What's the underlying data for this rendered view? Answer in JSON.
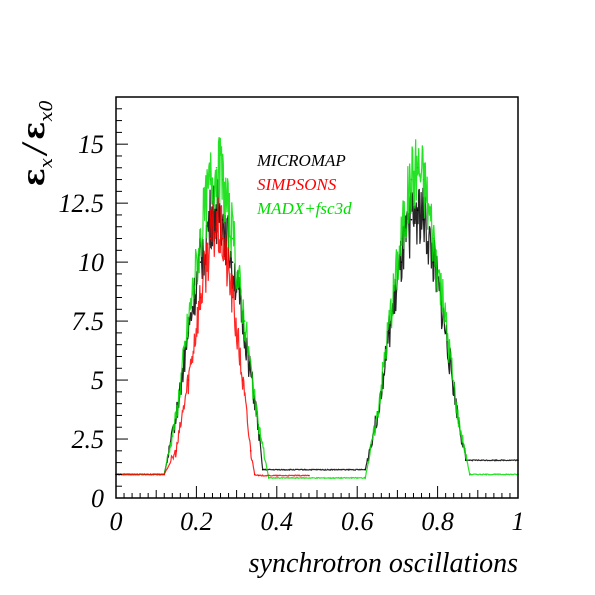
{
  "chart_data": {
    "type": "line",
    "title": "",
    "xlabel": "synchrotron oscillations",
    "ylabel": {
      "numerator": "ε",
      "numerator_sub": "x",
      "separator": "/",
      "denominator": "ε",
      "denominator_sub": "x0"
    },
    "xlim": [
      0,
      1
    ],
    "ylim": [
      0,
      17
    ],
    "x_ticks": [
      "0",
      "0.2",
      "0.4",
      "0.6",
      "0.8",
      "1"
    ],
    "x_tick_values": [
      0,
      0.2,
      0.4,
      0.6,
      0.8,
      1
    ],
    "y_ticks": [
      "0",
      "2.5",
      "5",
      "7.5",
      "10",
      "12.5",
      "15"
    ],
    "y_tick_values": [
      0,
      2.5,
      5,
      7.5,
      10,
      12.5,
      15
    ],
    "grid": false,
    "legend_position": "top-center",
    "series": [
      {
        "name": "MICROMAP",
        "color": "#000000",
        "x": [
          0,
          0.12,
          0.15,
          0.18,
          0.21,
          0.235,
          0.25,
          0.265,
          0.29,
          0.32,
          0.35,
          0.365,
          0.62,
          0.65,
          0.68,
          0.71,
          0.735,
          0.75,
          0.765,
          0.79,
          0.82,
          0.85,
          0.87,
          1.0
        ],
        "y": [
          1.0,
          1.0,
          3.5,
          7.0,
          10.0,
          11.8,
          12.2,
          11.8,
          10.0,
          7.0,
          3.5,
          1.2,
          1.2,
          3.5,
          7.0,
          10.0,
          11.8,
          12.2,
          11.8,
          10.0,
          7.0,
          3.5,
          1.6,
          1.6
        ]
      },
      {
        "name": "SIMPSONS",
        "color": "#ff0000",
        "x": [
          0,
          0.12,
          0.15,
          0.18,
          0.21,
          0.235,
          0.25,
          0.265,
          0.29,
          0.315,
          0.335,
          0.345,
          0.355,
          0.48
        ],
        "y": [
          1.0,
          1.0,
          2.0,
          5.0,
          8.5,
          11.0,
          11.5,
          11.0,
          8.5,
          5.0,
          2.0,
          1.0,
          0.95,
          0.95
        ]
      },
      {
        "name": "MADX+fsc3d",
        "color": "#00dd00",
        "x": [
          0,
          0.12,
          0.15,
          0.18,
          0.21,
          0.235,
          0.25,
          0.265,
          0.29,
          0.32,
          0.35,
          0.38,
          0.62,
          0.65,
          0.68,
          0.71,
          0.735,
          0.75,
          0.765,
          0.79,
          0.82,
          0.85,
          0.88,
          1.0
        ],
        "y": [
          1.0,
          1.0,
          3.5,
          7.5,
          11.0,
          13.5,
          14.0,
          13.5,
          11.0,
          7.5,
          3.5,
          0.85,
          0.85,
          3.5,
          7.5,
          11.0,
          13.5,
          14.0,
          13.5,
          11.0,
          7.5,
          3.5,
          1.0,
          1.0
        ]
      }
    ]
  }
}
